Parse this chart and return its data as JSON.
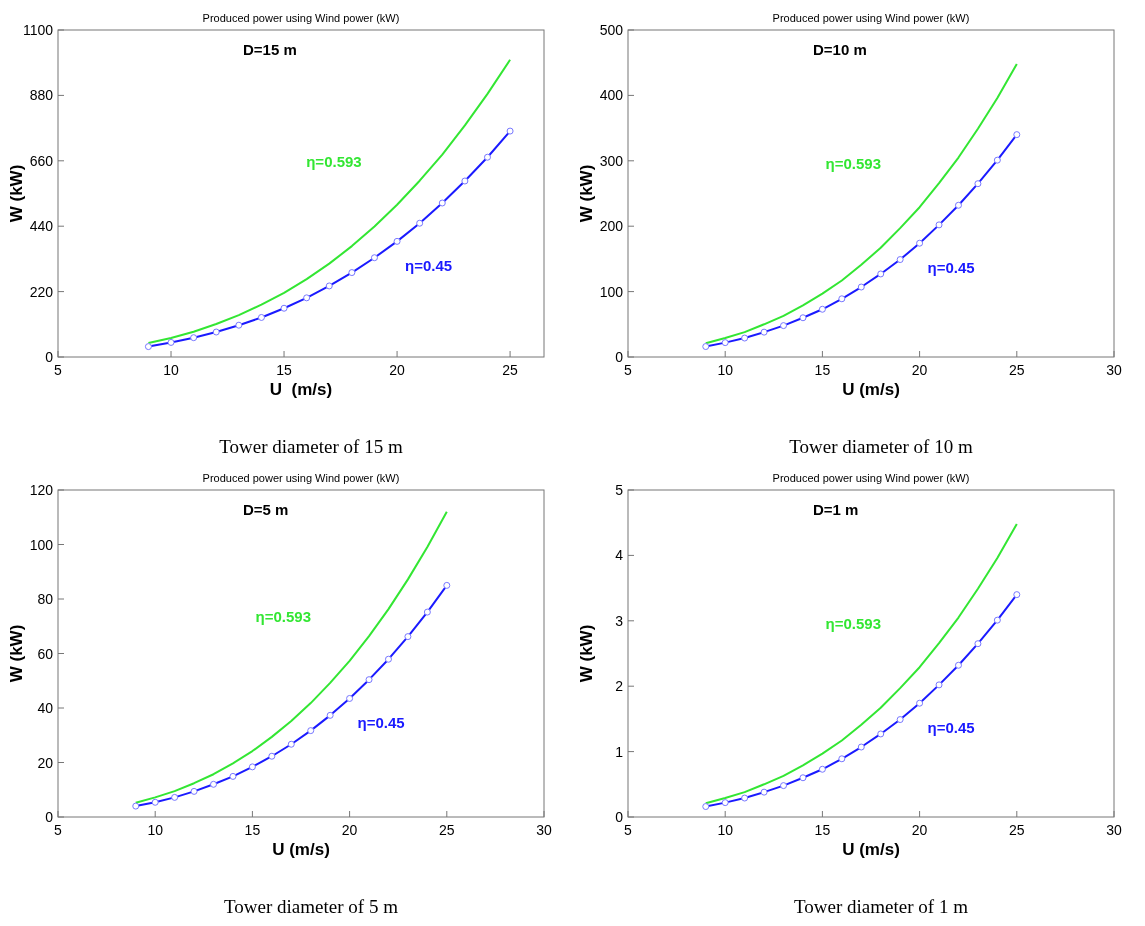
{
  "chart_data": [
    {
      "type": "line",
      "title": "Produced power using Wind power (kW)",
      "xlabel": "U  (m/s)",
      "ylabel": "W (kW)",
      "annotations": [
        "D=15 m",
        "Tower diameter of 15 m"
      ],
      "x": [
        9,
        10,
        11,
        12,
        13,
        14,
        15,
        16,
        17,
        18,
        19,
        20,
        21,
        22,
        23,
        24,
        25
      ],
      "xlim": [
        5,
        26.5
      ],
      "xticks": [
        5,
        10,
        15,
        20,
        25
      ],
      "ylim": [
        0,
        1100
      ],
      "yticks": [
        0,
        220,
        440,
        660,
        880,
        1100
      ],
      "series": [
        {
          "name": "η=0.593",
          "color": "#33e633",
          "marker": "none",
          "values": [
            47,
            64,
            85,
            111,
            141,
            176,
            216,
            262,
            314,
            373,
            439,
            512,
            593,
            681,
            779,
            885,
            1000
          ]
        },
        {
          "name": "η=0.45",
          "color": "#1a1aff",
          "marker": "circle",
          "values": [
            35,
            49,
            65,
            84,
            107,
            133,
            164,
            199,
            239,
            284,
            334,
            389,
            450,
            518,
            592,
            672,
            760
          ]
        }
      ]
    },
    {
      "type": "line",
      "title": "Produced power using Wind power (kW)",
      "xlabel": "U (m/s)",
      "ylabel": "W (kW)",
      "annotations": [
        "D=10 m",
        "Tower diameter of 10 m"
      ],
      "x": [
        9,
        10,
        11,
        12,
        13,
        14,
        15,
        16,
        17,
        18,
        19,
        20,
        21,
        22,
        23,
        24,
        25
      ],
      "xlim": [
        5,
        30
      ],
      "xticks": [
        5,
        10,
        15,
        20,
        25,
        30
      ],
      "ylim": [
        0,
        500
      ],
      "yticks": [
        0,
        100,
        200,
        300,
        400,
        500
      ],
      "series": [
        {
          "name": "η=0.593",
          "color": "#33e633",
          "marker": "none",
          "values": [
            21,
            29,
            38,
            50,
            63,
            79,
            97,
            117,
            141,
            167,
            197,
            229,
            266,
            305,
            349,
            396,
            448
          ]
        },
        {
          "name": "η=0.45",
          "color": "#1a1aff",
          "marker": "circle",
          "values": [
            16,
            22,
            29,
            38,
            48,
            60,
            73,
            89,
            107,
            127,
            149,
            174,
            202,
            232,
            265,
            301,
            340
          ]
        }
      ]
    },
    {
      "type": "line",
      "title": "Produced power using Wind power (kW)",
      "xlabel": "U (m/s)",
      "ylabel": "W (kW)",
      "annotations": [
        "D=5 m",
        "Tower diameter of 5 m"
      ],
      "x": [
        9,
        10,
        11,
        12,
        13,
        14,
        15,
        16,
        17,
        18,
        19,
        20,
        21,
        22,
        23,
        24,
        25
      ],
      "xlim": [
        5,
        30
      ],
      "xticks": [
        5,
        10,
        15,
        20,
        25,
        30
      ],
      "ylim": [
        0,
        120
      ],
      "yticks": [
        0,
        20,
        40,
        60,
        80,
        100,
        120
      ],
      "series": [
        {
          "name": "η=0.593",
          "color": "#33e633",
          "marker": "none",
          "values": [
            5.2,
            7.2,
            9.5,
            12.4,
            15.7,
            19.7,
            24.2,
            29.4,
            35.2,
            41.8,
            49.2,
            57.3,
            66.4,
            76.3,
            87.2,
            99.1,
            112
          ]
        },
        {
          "name": "η=0.45",
          "color": "#1a1aff",
          "marker": "circle",
          "values": [
            4.0,
            5.4,
            7.2,
            9.4,
            12.0,
            14.9,
            18.4,
            22.3,
            26.7,
            31.7,
            37.3,
            43.5,
            50.4,
            57.9,
            66.2,
            75.2,
            85
          ]
        }
      ]
    },
    {
      "type": "line",
      "title": "Produced power using Wind power (kW)",
      "xlabel": "U (m/s)",
      "ylabel": "W (kW)",
      "annotations": [
        "D=1 m",
        "Tower diameter of 1 m"
      ],
      "x": [
        9,
        10,
        11,
        12,
        13,
        14,
        15,
        16,
        17,
        18,
        19,
        20,
        21,
        22,
        23,
        24,
        25
      ],
      "xlim": [
        5,
        30
      ],
      "xticks": [
        5,
        10,
        15,
        20,
        25,
        30
      ],
      "ylim": [
        0,
        5
      ],
      "yticks": [
        0,
        1,
        2,
        3,
        4,
        5
      ],
      "series": [
        {
          "name": "η=0.593",
          "color": "#33e633",
          "marker": "none",
          "values": [
            0.21,
            0.29,
            0.38,
            0.5,
            0.63,
            0.79,
            0.97,
            1.17,
            1.41,
            1.67,
            1.97,
            2.29,
            2.66,
            3.05,
            3.49,
            3.96,
            4.48
          ]
        },
        {
          "name": "η=0.45",
          "color": "#1a1aff",
          "marker": "circle",
          "values": [
            0.16,
            0.22,
            0.29,
            0.38,
            0.48,
            0.6,
            0.73,
            0.89,
            1.07,
            1.27,
            1.49,
            1.74,
            2.02,
            2.32,
            2.65,
            3.01,
            3.4
          ]
        }
      ]
    }
  ]
}
